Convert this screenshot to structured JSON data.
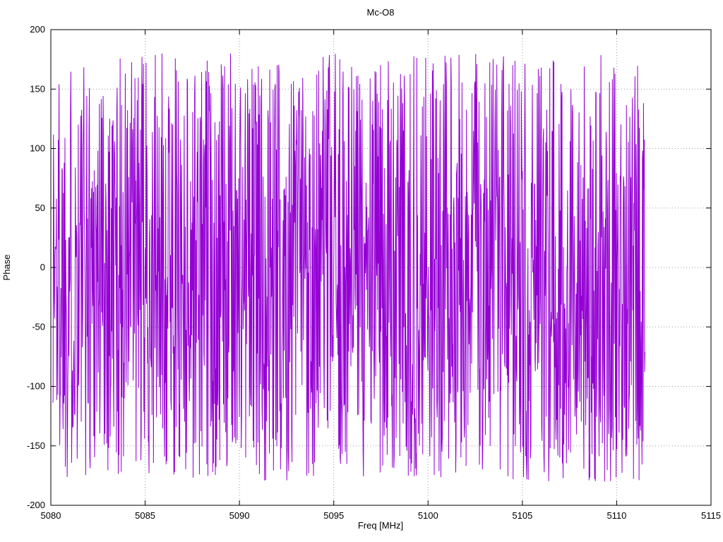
{
  "figure": {
    "background_color": "#ffffff",
    "border_color": "#000000",
    "grid_color": "#9e9e9e"
  },
  "chart_data": {
    "type": "line",
    "title": "Mc-O8",
    "xlabel": "Freq [MHz]",
    "ylabel": "Phase",
    "xlim": [
      5080,
      5115
    ],
    "ylim": [
      -200,
      200
    ],
    "x_ticks": [
      5080,
      5085,
      5090,
      5095,
      5100,
      5105,
      5110,
      5115
    ],
    "y_ticks": [
      -200,
      -150,
      -100,
      -50,
      0,
      50,
      100,
      150,
      200
    ],
    "grid": true,
    "grid_style": "dotted",
    "legend_position": "none",
    "line_color": "#9400d3",
    "series": [
      {
        "name": "Phase",
        "description": "Wrapped phase versus frequency; values appear uniformly scattered between -180 and +180 degrees, densely sampled, producing a solid band of vertical strokes from about 5080.1 MHz to about 5111.5 MHz. No data between 5111.5 and 5115 MHz.",
        "synthetic": {
          "generator": "seeded-uniform-random",
          "seed": 1337,
          "x_start": 5080.1,
          "x_end": 5111.5,
          "n_points": 1600,
          "y_min": -180,
          "y_max": 180
        }
      }
    ]
  }
}
